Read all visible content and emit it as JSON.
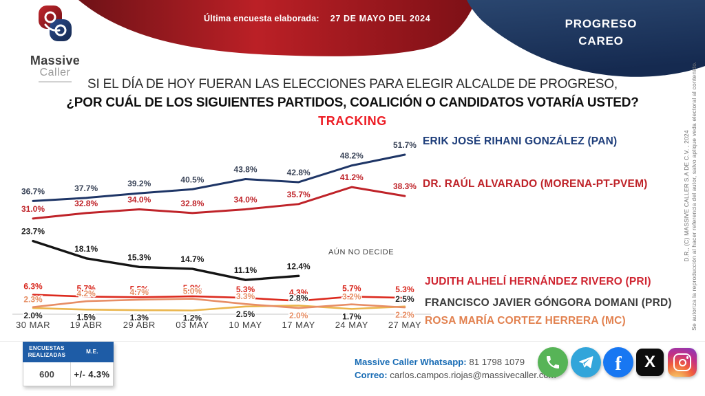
{
  "header": {
    "ribbon_label": "Última encuesta elaborada:",
    "ribbon_date": "27 DE MAYO DEL 2024",
    "corner_line1": "PROGRESO",
    "corner_line2": "CAREO",
    "logo_line1": "Massive",
    "logo_line2": "Caller",
    "ribbon_colors": [
      "#6f1217",
      "#bb2026",
      "#7d1016"
    ],
    "corner_colors": [
      "#2a466f",
      "#152a50"
    ]
  },
  "title": {
    "line1": "SI EL DÍA DE HOY FUERAN LAS ELECCIONES PARA ELEGIR ALCALDE DE PROGRESO,",
    "line2": "¿POR CUÁL DE LOS SIGUIENTES PARTIDOS, COALICIÓN O CANDIDATOS VOTARÍA USTED?",
    "line3": "TRACKING",
    "tracking_color": "#ed1c24"
  },
  "chart_data": {
    "type": "line",
    "title": "TRACKING",
    "categories": [
      "30 MAR",
      "19 ABR",
      "29 ABR",
      "03 MAY",
      "10 MAY",
      "17 MAY",
      "24 MAY",
      "27 MAY"
    ],
    "value_suffix": "%",
    "ylim": [
      0,
      55
    ],
    "grid": false,
    "legend_position": "right-inline",
    "series": [
      {
        "id": "pan",
        "name": "ERIK JOSÉ RIHANI GONZÁLEZ (PAN)",
        "color": "#1e3566",
        "value_color": "#394357",
        "name_color": "#1d3d7a",
        "values": [
          36.7,
          37.7,
          39.2,
          40.5,
          43.8,
          42.8,
          48.2,
          51.7
        ]
      },
      {
        "id": "morena",
        "name": "DR. RAÚL ALVARADO (MORENA-PT-PVEM)",
        "color": "#bf2329",
        "value_color": "#bf2329",
        "name_color": "#bf2329",
        "values": [
          31.0,
          32.8,
          34.0,
          32.8,
          34.0,
          35.7,
          41.2,
          38.3
        ]
      },
      {
        "id": "undecided",
        "name": "AÚN NO DECIDE",
        "color": "#141414",
        "value_color": "#1c1c1c",
        "name_color": "#3a3a3a",
        "values": [
          23.7,
          18.1,
          15.3,
          14.7,
          11.1,
          12.4
        ]
      },
      {
        "id": "pri",
        "name": "JUDITH ALHELÍ HERNÁNDEZ RIVERO (PRI)",
        "color": "#dc2a1e",
        "value_color": "#d8261c",
        "name_color": "#cf2430",
        "values": [
          6.3,
          5.7,
          5.5,
          5.8,
          5.3,
          4.3,
          5.7,
          5.3
        ]
      },
      {
        "id": "prd",
        "name": "FRANCISCO JAVIER GÓNGORA DOMANI (PRD)",
        "color": "#eab54b",
        "value_color": "#232323",
        "name_color": "#3c3c3c",
        "values": [
          2.0,
          1.5,
          1.3,
          1.2,
          2.5,
          2.8,
          1.7,
          2.5
        ]
      },
      {
        "id": "mc",
        "name": "ROSA MARÍA CORTEZ HERRERA (MC)",
        "color": "#e78e66",
        "value_color": "#e68d63",
        "name_color": "#e2814f",
        "values": [
          2.3,
          4.2,
          4.7,
          5.0,
          3.3,
          2.0,
          3.2,
          2.2
        ]
      }
    ]
  },
  "footnote_table": {
    "col1_header": "ENCUESTAS REALIZADAS",
    "col2_header": "M.E.",
    "col1_value": "600",
    "col2_value": "+/- 4.3%",
    "header_bg": "#1e5ca6"
  },
  "contact": {
    "whatsapp_label": "Massive Caller Whatsapp:",
    "whatsapp_number": "81 1798 1079",
    "email_label": "Correo:",
    "email": "carlos.campos.riojas@massivecaller.com"
  },
  "social": {
    "icons": [
      "whatsapp",
      "telegram",
      "facebook",
      "x",
      "instagram"
    ],
    "facebook_glyph": "f",
    "x_glyph": "X"
  },
  "copyright": {
    "line1": "D.R., (C) MASSIVE CALLER S.A DE C.V. , 2024",
    "line2": "Se autoriza la reproducción al hacer referencia del autor, salvo aplique veda electoral al contenido."
  }
}
